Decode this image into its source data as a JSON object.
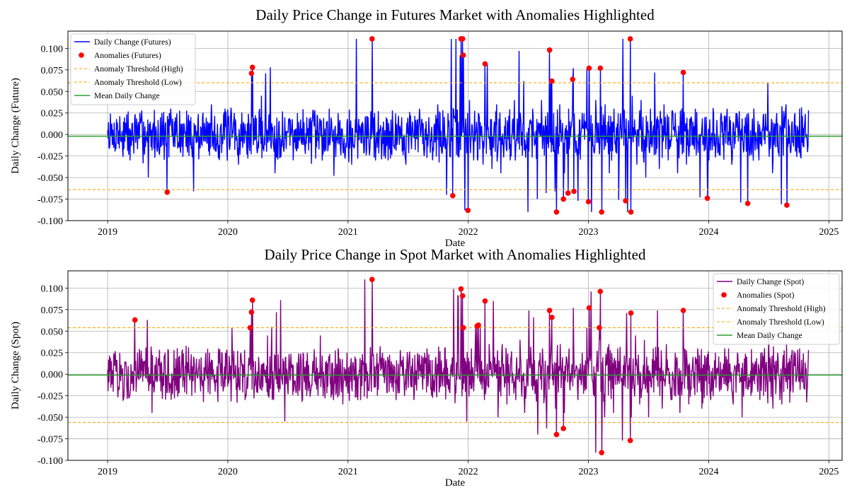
{
  "chart_data": [
    {
      "type": "line",
      "title": "Daily Price Change in Futures Market with Anomalies Highlighted",
      "xlabel": "Date",
      "ylabel": "Daily Change (Future)",
      "x_range": [
        "2018-09-01",
        "2025-02-10"
      ],
      "xlim": [
        2018.67,
        2025.11
      ],
      "ylim": [
        -0.1,
        0.12
      ],
      "x_ticks": [
        "2019",
        "2020",
        "2021",
        "2022",
        "2023",
        "2024",
        "2025"
      ],
      "y_ticks": [
        "-0.100",
        "-0.075",
        "-0.050",
        "-0.025",
        "0.000",
        "0.025",
        "0.050",
        "0.075",
        "0.100"
      ],
      "grid": true,
      "legend_position": "upper-left",
      "series": [
        {
          "name": "Daily Change (Futures)",
          "color": "#0000ff",
          "x_start": "2019-01-01",
          "x_end": "2024-10-31",
          "values": [
            0.005,
            -0.012,
            0.018,
            -0.008,
            0.012,
            -0.03,
            0.02,
            -0.005,
            0.015,
            -0.05,
            0.01,
            -0.02,
            0.025,
            -0.01,
            0.03,
            0.02,
            -0.015,
            0.01,
            -0.025,
            -0.066,
            0.015,
            0.02,
            -0.01,
            0.035,
            -0.02,
            0.01,
            0.03,
            -0.018,
            0.025,
            -0.035,
            0.012,
            -0.028,
            0.02,
            -0.015,
            0.045,
            0.071,
            0.078,
            -0.045,
            0.015,
            -0.02,
            0.018,
            -0.03,
            0.025,
            -0.012,
            0.02,
            0.01,
            -0.028,
            0.015,
            -0.02,
            0.03,
            -0.048,
            0.025,
            -0.015,
            0.018,
            -0.035,
            0.111,
            -0.01,
            0.02,
            -0.018,
            0.025,
            -0.022,
            0.015,
            -0.03,
            0.028,
            -0.012,
            0.02,
            -0.035,
            0.022,
            -0.018,
            0.03,
            -0.025,
            0.02,
            -0.015,
            0.035,
            -0.02,
            -0.07,
            0.111,
            0.111,
            0.092,
            -0.088,
            0.04,
            -0.03,
            0.025,
            -0.035,
            0.082,
            -0.04,
            0.035,
            -0.045,
            0.02,
            -0.03,
            0.04,
            0.097,
            0.062,
            -0.09,
            0.03,
            -0.075,
            0.04,
            -0.068,
            0.064,
            -0.066,
            0.035,
            -0.045,
            0.03,
            0.077,
            -0.077,
            0.025,
            0.076,
            -0.09,
            0.04,
            -0.05,
            0.035,
            -0.045,
            0.03,
            -0.076,
            0.111,
            -0.09,
            0.045,
            -0.035,
            0.04,
            -0.05,
            0.03,
            0.072,
            -0.04,
            0.035,
            -0.03,
            0.025,
            -0.045,
            0.03,
            -0.035,
            0.02,
            0.03,
            -0.073,
            0.02,
            -0.03,
            0.025,
            -0.02,
            0.015,
            0.03,
            -0.035,
            0.025,
            -0.079,
            0.02,
            -0.025,
            0.015,
            -0.03,
            0.02,
            0.06,
            -0.045,
            0.025,
            -0.081,
            0.035,
            -0.02,
            0.025,
            0.03,
            -0.015,
            0.028
          ]
        }
      ],
      "anomalies": {
        "name": "Anomalies (Futures)",
        "color": "#ff0000",
        "points": [
          {
            "x": "2019-07-01",
            "y": -0.067
          },
          {
            "x": "2020-03-13",
            "y": 0.071
          },
          {
            "x": "2020-03-16",
            "y": 0.078
          },
          {
            "x": "2021-03-15",
            "y": 0.111
          },
          {
            "x": "2021-11-15",
            "y": -0.071
          },
          {
            "x": "2021-12-10",
            "y": 0.111
          },
          {
            "x": "2021-12-15",
            "y": 0.111
          },
          {
            "x": "2021-12-17",
            "y": 0.092
          },
          {
            "x": "2021-12-31",
            "y": -0.088
          },
          {
            "x": "2022-02-21",
            "y": 0.082
          },
          {
            "x": "2022-09-05",
            "y": 0.098
          },
          {
            "x": "2022-09-12",
            "y": 0.062
          },
          {
            "x": "2022-09-26",
            "y": -0.09
          },
          {
            "x": "2022-10-17",
            "y": -0.075
          },
          {
            "x": "2022-10-31",
            "y": -0.068
          },
          {
            "x": "2022-11-14",
            "y": 0.064
          },
          {
            "x": "2022-11-18",
            "y": -0.066
          },
          {
            "x": "2023-01-01",
            "y": -0.078
          },
          {
            "x": "2023-01-03",
            "y": 0.077
          },
          {
            "x": "2023-02-06",
            "y": 0.077
          },
          {
            "x": "2023-02-10",
            "y": -0.09
          },
          {
            "x": "2023-04-24",
            "y": -0.077
          },
          {
            "x": "2023-05-08",
            "y": 0.111
          },
          {
            "x": "2023-05-10",
            "y": -0.09
          },
          {
            "x": "2023-10-16",
            "y": 0.072
          },
          {
            "x": "2023-12-28",
            "y": -0.074
          },
          {
            "x": "2024-04-29",
            "y": -0.08
          },
          {
            "x": "2024-08-26",
            "y": -0.082
          }
        ]
      },
      "threshold_high": {
        "name": "Anomaly Threshold (High)",
        "value": 0.06,
        "color": "#ffa500"
      },
      "threshold_low": {
        "name": "Anomaly Threshold (Low)",
        "value": -0.064,
        "color": "#ffa500"
      },
      "mean": {
        "name": "Mean Daily Change",
        "value": -0.002,
        "color": "#2ca02c"
      }
    },
    {
      "type": "line",
      "title": "Daily Price Change in Spot Market with Anomalies Highlighted",
      "xlabel": "Date",
      "ylabel": "Daily Change (Spot)",
      "x_range": [
        "2018-09-01",
        "2025-02-10"
      ],
      "xlim": [
        2018.67,
        2025.11
      ],
      "ylim": [
        -0.1,
        0.12
      ],
      "x_ticks": [
        "2019",
        "2020",
        "2021",
        "2022",
        "2023",
        "2024",
        "2025"
      ],
      "y_ticks": [
        "-0.100",
        "-0.075",
        "-0.050",
        "-0.025",
        "0.000",
        "0.025",
        "0.050",
        "0.075",
        "0.100"
      ],
      "grid": true,
      "legend_position": "upper-right",
      "series": [
        {
          "name": "Daily Change (Spot)",
          "color": "#800080",
          "x_start": "2019-01-01",
          "x_end": "2024-10-31",
          "values": [
            0.005,
            -0.012,
            0.016,
            -0.008,
            0.012,
            -0.025,
            0.018,
            -0.005,
            0.015,
            0.063,
            -0.045,
            0.02,
            -0.02,
            0.025,
            -0.01,
            0.028,
            0.02,
            -0.015,
            0.01,
            -0.025,
            0.018,
            -0.02,
            0.015,
            0.025,
            -0.01,
            0.03,
            -0.02,
            0.01,
            0.054,
            -0.018,
            0.025,
            -0.03,
            0.012,
            -0.028,
            0.02,
            -0.015,
            0.045,
            0.055,
            0.072,
            0.086,
            -0.055,
            0.015,
            -0.02,
            0.018,
            -0.03,
            0.025,
            -0.012,
            0.02,
            0.045,
            -0.028,
            0.015,
            -0.02,
            0.03,
            -0.035,
            0.025,
            -0.015,
            0.018,
            -0.03,
            0.11,
            -0.01,
            0.02,
            -0.018,
            0.025,
            -0.022,
            0.015,
            -0.03,
            0.028,
            -0.012,
            0.02,
            -0.03,
            0.022,
            -0.018,
            0.03,
            -0.025,
            0.02,
            -0.015,
            0.03,
            -0.02,
            0.099,
            0.091,
            0.054,
            -0.055,
            0.03,
            0.056,
            0.057,
            -0.03,
            0.035,
            0.085,
            -0.05,
            0.035,
            -0.035,
            0.02,
            -0.03,
            0.04,
            -0.045,
            0.074,
            0.066,
            -0.07,
            0.03,
            -0.063,
            0.04,
            -0.04,
            0.035,
            -0.045,
            0.03,
            0.077,
            -0.03,
            0.025,
            0.054,
            0.096,
            -0.091,
            0.04,
            -0.05,
            0.035,
            -0.045,
            0.03,
            -0.077,
            0.071,
            -0.05,
            0.045,
            -0.035,
            0.04,
            -0.05,
            0.03,
            0.074,
            -0.04,
            0.035,
            -0.03,
            0.025,
            -0.045,
            0.03,
            -0.035,
            0.02,
            0.03,
            -0.04,
            0.02,
            -0.03,
            0.025,
            -0.02,
            0.015,
            0.03,
            -0.035,
            0.025,
            -0.05,
            0.02,
            -0.025,
            0.015,
            -0.03,
            0.02,
            0.045,
            -0.04,
            0.025,
            -0.035,
            0.035,
            -0.02,
            0.025,
            0.03,
            -0.015,
            0.028
          ]
        }
      ],
      "anomalies": {
        "name": "Anomalies (Spot)",
        "color": "#ff0000",
        "points": [
          {
            "x": "2019-03-25",
            "y": 0.063
          },
          {
            "x": "2020-03-09",
            "y": 0.054
          },
          {
            "x": "2020-03-13",
            "y": 0.072
          },
          {
            "x": "2020-03-16",
            "y": 0.086
          },
          {
            "x": "2021-03-15",
            "y": 0.11
          },
          {
            "x": "2021-12-10",
            "y": 0.099
          },
          {
            "x": "2021-12-15",
            "y": 0.091
          },
          {
            "x": "2021-12-17",
            "y": 0.054
          },
          {
            "x": "2022-01-28",
            "y": 0.056
          },
          {
            "x": "2022-02-01",
            "y": 0.057
          },
          {
            "x": "2022-02-21",
            "y": 0.085
          },
          {
            "x": "2022-09-05",
            "y": 0.074
          },
          {
            "x": "2022-09-12",
            "y": 0.066
          },
          {
            "x": "2022-09-26",
            "y": -0.07
          },
          {
            "x": "2022-10-17",
            "y": -0.063
          },
          {
            "x": "2023-01-03",
            "y": 0.077
          },
          {
            "x": "2023-02-03",
            "y": 0.054
          },
          {
            "x": "2023-02-06",
            "y": 0.096
          },
          {
            "x": "2023-02-10",
            "y": -0.091
          },
          {
            "x": "2023-05-08",
            "y": -0.077
          },
          {
            "x": "2023-05-10",
            "y": 0.071
          },
          {
            "x": "2023-10-16",
            "y": 0.074
          }
        ]
      },
      "threshold_high": {
        "name": "Anomaly Threshold (High)",
        "value": 0.054,
        "color": "#ffa500"
      },
      "threshold_low": {
        "name": "Anomaly Threshold (Low)",
        "value": -0.056,
        "color": "#ffa500"
      },
      "mean": {
        "name": "Mean Daily Change",
        "value": -0.001,
        "color": "#2ca02c"
      }
    }
  ]
}
